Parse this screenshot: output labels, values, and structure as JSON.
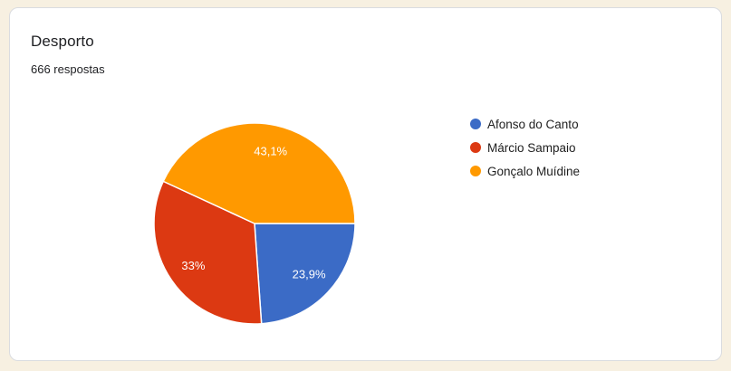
{
  "card": {
    "title": "Desporto",
    "responses_label": "666 respostas"
  },
  "colors": {
    "page_background": "#F7F0E1",
    "card_background": "#FFFFFF",
    "card_border": "#DADCE0",
    "title_text": "#202124",
    "legend_text": "#212121",
    "slice_label_text": "#FFFFFF"
  },
  "chart_data": {
    "type": "pie",
    "title": "Desporto",
    "subtitle": "666 respostas",
    "total_responses": 666,
    "start_angle_deg": 90,
    "direction": "clockwise",
    "legend_position": "right",
    "slices": [
      {
        "label": "Afonso do Canto",
        "value_pct": 23.9,
        "display_pct": "23,9%",
        "color": "#3B6BC6"
      },
      {
        "label": "Márcio Sampaio",
        "value_pct": 33,
        "display_pct": "33%",
        "color": "#DC3912"
      },
      {
        "label": "Gonçalo Muídine",
        "value_pct": 43.1,
        "display_pct": "43,1%",
        "color": "#FF9900"
      }
    ]
  }
}
